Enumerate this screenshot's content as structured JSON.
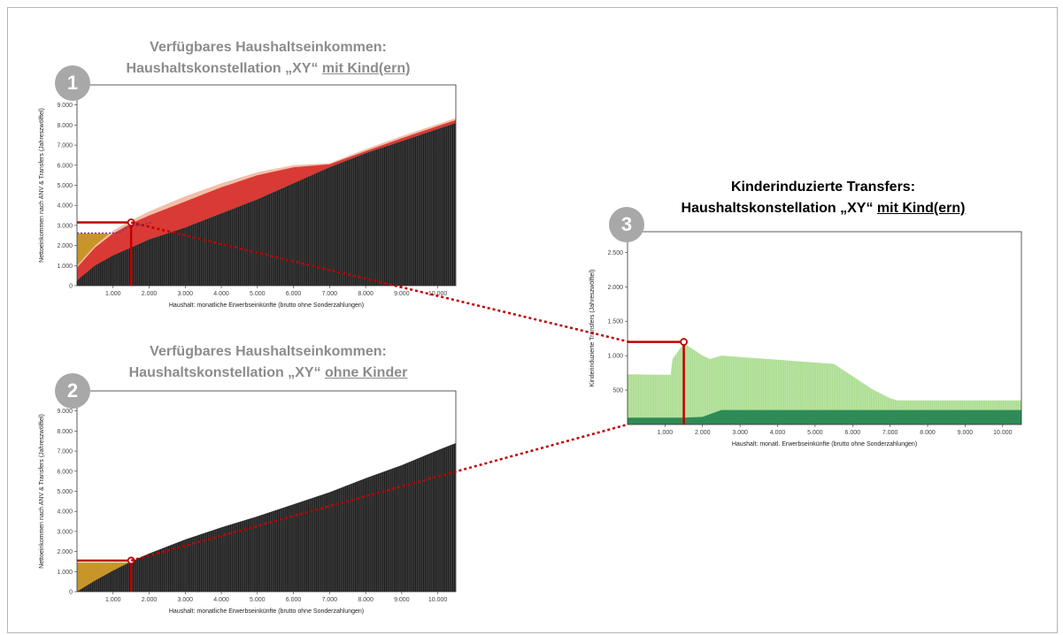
{
  "panel1": {
    "badge": "1",
    "title_line1": "Verfügbares Haushaltseinkommen:",
    "title_line2_prefix": "Haushaltskonstellation „XY“ ",
    "title_line2_underlined": "mit Kind(ern)"
  },
  "panel2": {
    "badge": "2",
    "title_line1": "Verfügbares Haushaltseinkommen:",
    "title_line2_prefix": "Haushaltskonstellation „XY“ ",
    "title_line2_underlined": "ohne Kinder"
  },
  "panel3": {
    "badge": "3",
    "title_line1": "Kinderinduzierte Transfers:",
    "title_line2_prefix": "Haushaltskonstellation „XY“ ",
    "title_line2_underlined": "mit Kind(ern)"
  },
  "colors": {
    "net_income": "#1a1a1a",
    "transfers_red": "#d93a35",
    "transfers_light": "#f2bfa8",
    "mustard": "#c8952a",
    "green_light": "#a8db8e",
    "green_dark": "#2e8b57",
    "highlight": "#c00000"
  },
  "chart_data": [
    {
      "type": "area",
      "title": "Verfügbares Haushaltseinkommen: Haushaltskonstellation „XY“ mit Kind(ern)",
      "xlabel": "Haushalt: monatliche Erwerbseinkünfte (brutto ohne Sonderzahlungen)",
      "ylabel": "Nettoeinkommen nach ANV & Transfers (Jahreszwölftel)",
      "xlim": [
        0,
        10500
      ],
      "ylim": [
        0,
        10000
      ],
      "x_ticks": [
        "1.000",
        "2.000",
        "3.000",
        "4.000",
        "5.000",
        "6.000",
        "7.000",
        "8.000",
        "9.000",
        "10.000"
      ],
      "y_ticks": [
        "0",
        "1.000",
        "2.000",
        "3.000",
        "4.000",
        "5.000",
        "6.000",
        "7.000",
        "8.000",
        "9.000"
      ],
      "x": [
        0,
        500,
        1000,
        1500,
        2000,
        3000,
        4000,
        5000,
        6000,
        7000,
        8000,
        9000,
        10000,
        10500
      ],
      "series": [
        {
          "values": [
            250,
            1000,
            1500,
            1900,
            2300,
            2900,
            3600,
            4300,
            5100,
            5900,
            6600,
            7200,
            7800,
            8100
          ]
        },
        {
          "values": [
            900,
            1900,
            2600,
            3100,
            3500,
            4200,
            4900,
            5500,
            5900,
            6050,
            6700,
            7350,
            7950,
            8250
          ]
        },
        {
          "values": [
            1000,
            2000,
            2750,
            3250,
            3700,
            4450,
            5100,
            5650,
            6000,
            6100,
            6800,
            7450,
            8050,
            8350
          ]
        }
      ],
      "highlight": {
        "x": 1500,
        "y": 3150
      }
    },
    {
      "type": "area",
      "title": "Verfügbares Haushaltseinkommen: Haushaltskonstellation „XY“ ohne Kinder",
      "xlabel": "Haushalt: monatliche Erwerbseinkünfte (brutto ohne Sonderzahlungen)",
      "ylabel": "Nettoeinkommen nach ANV & Transfers (Jahreszwölftel)",
      "xlim": [
        0,
        10500
      ],
      "ylim": [
        0,
        10000
      ],
      "x_ticks": [
        "1.000",
        "2.000",
        "3.000",
        "4.000",
        "5.000",
        "6.000",
        "7.000",
        "8.000",
        "9.000",
        "10.000"
      ],
      "y_ticks": [
        "0",
        "1.000",
        "2.000",
        "3.000",
        "4.000",
        "5.000",
        "6.000",
        "7.000",
        "8.000",
        "9.000"
      ],
      "x": [
        0,
        500,
        1000,
        1500,
        2000,
        3000,
        4000,
        5000,
        6000,
        7000,
        8000,
        9000,
        10000,
        10500
      ],
      "series": [
        {
          "values": [
            0,
            550,
            1050,
            1500,
            1900,
            2600,
            3200,
            3750,
            4350,
            4950,
            5650,
            6300,
            7050,
            7400
          ]
        }
      ],
      "highlight": {
        "x": 1500,
        "y": 1550
      }
    },
    {
      "type": "area",
      "title": "Kinderinduzierte Transfers: Haushaltskonstellation „XY“ mit Kind(ern)",
      "xlabel": "Haushalt: monatl. Erwerbseinkünfte (brutto ohne Sonderzahlungen)",
      "ylabel": "Kinderinduzierte Transfers (Jahreszwölftel)",
      "xlim": [
        0,
        10500
      ],
      "ylim": [
        0,
        2800
      ],
      "x_ticks": [
        "1.000",
        "2.000",
        "3.000",
        "4.000",
        "5.000",
        "6.000",
        "7.000",
        "8.000",
        "9.000",
        "10.000"
      ],
      "y_ticks": [
        "500",
        "1.000",
        "1.500",
        "2.000",
        "2.500"
      ],
      "x": [
        0,
        1150,
        1200,
        1500,
        2000,
        2200,
        2500,
        3000,
        4000,
        5000,
        5500,
        6000,
        6500,
        7000,
        7200,
        8000,
        10500
      ],
      "series": [
        {
          "values": [
            730,
            720,
            950,
            1180,
            1000,
            950,
            1000,
            980,
            940,
            900,
            880,
            700,
            520,
            380,
            350,
            350,
            350
          ]
        },
        {
          "values": [
            100,
            100,
            100,
            100,
            110,
            150,
            210,
            210,
            210,
            210,
            210,
            210,
            210,
            210,
            210,
            210,
            210
          ]
        }
      ],
      "highlight": {
        "x": 1500,
        "y": 1200
      }
    }
  ]
}
